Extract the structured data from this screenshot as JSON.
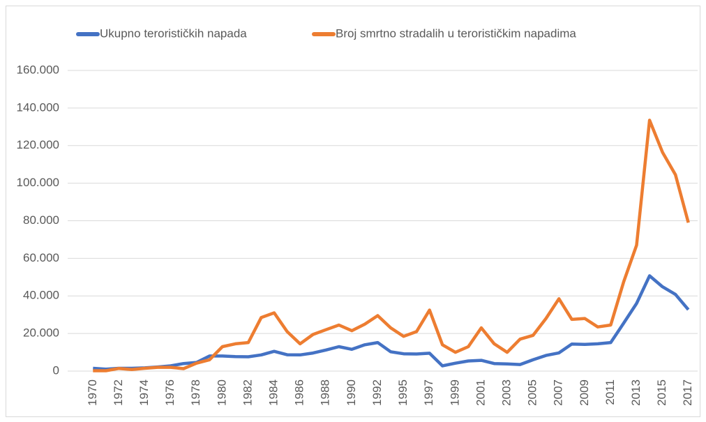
{
  "chart_data": {
    "type": "line",
    "categories": [
      "1970",
      null,
      "1972",
      null,
      "1974",
      null,
      "1976",
      null,
      "1978",
      null,
      "1980",
      null,
      "1982",
      null,
      "1984",
      null,
      "1986",
      null,
      "1988",
      null,
      "1990",
      null,
      "1992",
      null,
      "1995",
      null,
      "1997",
      null,
      "1999",
      null,
      "2001",
      null,
      "2003",
      null,
      "2005",
      null,
      "2007",
      null,
      "2009",
      null,
      "2011",
      null,
      "2013",
      null,
      "2015",
      null,
      "2017"
    ],
    "series": [
      {
        "name": "Ukupno terorističkih napada",
        "color": "#4472c4",
        "values": [
          1500,
          1000,
          1500,
          1500,
          1700,
          2200,
          2800,
          4000,
          4600,
          8000,
          8000,
          7700,
          7600,
          8600,
          10500,
          8700,
          8600,
          9600,
          11200,
          13000,
          11600,
          14000,
          15200,
          10300,
          9200,
          9100,
          9500,
          2800,
          4200,
          5400,
          5700,
          4000,
          3800,
          3500,
          6000,
          8300,
          9700,
          14400,
          14200,
          14500,
          15200,
          25500,
          36000,
          50700,
          44900,
          40800,
          32700
        ]
      },
      {
        "name": "Broj smrtno stradalih u terorističkim napadima",
        "color": "#ed7d31",
        "values": [
          200,
          200,
          1400,
          800,
          1500,
          2000,
          2000,
          1300,
          4200,
          6000,
          13000,
          14500,
          15200,
          28500,
          31000,
          21000,
          14500,
          19500,
          22000,
          24500,
          21500,
          25000,
          29500,
          23000,
          18500,
          21000,
          32500,
          14000,
          10000,
          13000,
          23000,
          14500,
          10000,
          17000,
          19000,
          28000,
          38500,
          27500,
          28000,
          23500,
          24500,
          47500,
          67000,
          133500,
          116500,
          104500,
          79000
        ]
      }
    ],
    "ylim": [
      0,
      160000
    ],
    "yticks": [
      0,
      {
        "value": 20000,
        "label": "20.000"
      },
      {
        "value": 40000,
        "label": "40.000"
      },
      {
        "value": 60000,
        "label": "60.000"
      },
      {
        "value": 80000,
        "label": "80.000"
      },
      {
        "value": 100000,
        "label": "100.000"
      },
      {
        "value": 120000,
        "label": "120.000"
      },
      {
        "value": 140000,
        "label": "140.000"
      },
      {
        "value": 160000,
        "label": "160.000"
      }
    ],
    "grid": true,
    "legend": "top"
  }
}
